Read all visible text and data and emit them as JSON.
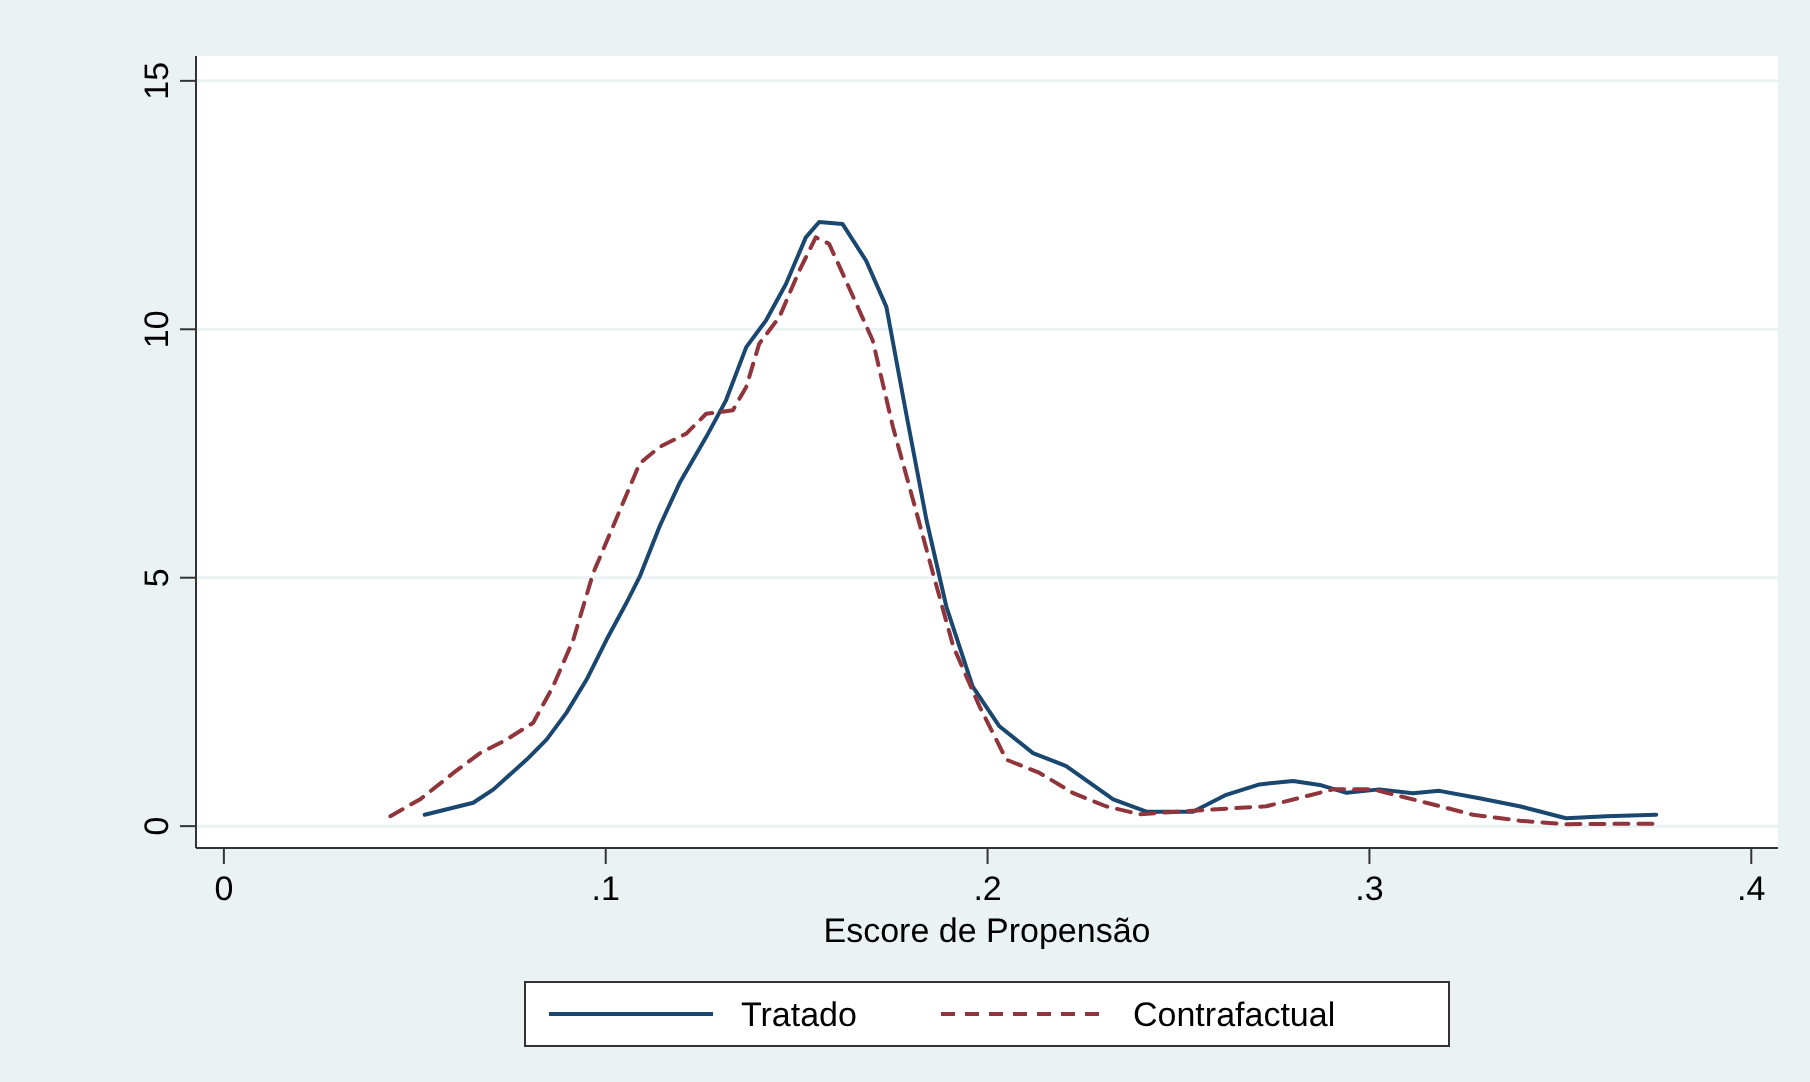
{
  "chart_data": {
    "type": "line",
    "xlabel": "Escore de Propensão",
    "xlim": [
      -0.0073,
      0.407
    ],
    "ylim": [
      -0.44,
      15.5
    ],
    "xticks": [
      0,
      {
        "value": 0.1,
        "label": ".1"
      },
      {
        "value": 0.2,
        "label": ".2"
      },
      {
        "value": 0.3,
        "label": ".3"
      },
      {
        "value": 0.4,
        "label": ".4"
      }
    ],
    "yticks": [
      0,
      5,
      10,
      15
    ],
    "grid": "y",
    "legend": "bottom",
    "series": [
      {
        "name": "Tratado",
        "color": "#1a476f",
        "line_style": "solid",
        "x": [
          0.0526,
          0.0653,
          0.0706,
          0.0793,
          0.0845,
          0.0897,
          0.095,
          0.1002,
          0.1054,
          0.1089,
          0.1141,
          0.1193,
          0.1263,
          0.1315,
          0.1368,
          0.142,
          0.1472,
          0.1524,
          0.1559,
          0.162,
          0.1682,
          0.1735,
          0.1787,
          0.184,
          0.1892,
          0.1961,
          0.2031,
          0.2119,
          0.2206,
          0.2329,
          0.2416,
          0.2538,
          0.2625,
          0.2712,
          0.28,
          0.287,
          0.294,
          0.3026,
          0.3114,
          0.3183,
          0.3288,
          0.3393,
          0.3515,
          0.362,
          0.3751
        ],
        "values": [
          0.23,
          0.47,
          0.74,
          1.34,
          1.74,
          2.28,
          2.95,
          3.75,
          4.49,
          5.02,
          6.03,
          6.9,
          7.83,
          8.57,
          9.64,
          10.18,
          10.91,
          11.85,
          12.16,
          12.12,
          11.38,
          10.45,
          8.3,
          6.16,
          4.42,
          2.81,
          2.01,
          1.47,
          1.21,
          0.54,
          0.29,
          0.29,
          0.63,
          0.84,
          0.91,
          0.83,
          0.67,
          0.74,
          0.66,
          0.71,
          0.56,
          0.4,
          0.16,
          0.2,
          0.23
        ]
      },
      {
        "name": "Contrafactual",
        "color": "#90353b",
        "line_style": "dashed",
        "x": [
          0.0436,
          0.0514,
          0.0601,
          0.0671,
          0.074,
          0.081,
          0.0862,
          0.0915,
          0.0967,
          0.1019,
          0.1089,
          0.1141,
          0.1211,
          0.1263,
          0.1333,
          0.1368,
          0.1402,
          0.1455,
          0.1507,
          0.155,
          0.1585,
          0.1613,
          0.1699,
          0.1752,
          0.1805,
          0.1857,
          0.191,
          0.1979,
          0.2049,
          0.2136,
          0.2223,
          0.231,
          0.2398,
          0.2538,
          0.273,
          0.2905,
          0.301,
          0.3149,
          0.3271,
          0.3393,
          0.3515,
          0.3742
        ],
        "values": [
          0.2,
          0.54,
          1.07,
          1.47,
          1.74,
          2.08,
          2.81,
          3.75,
          5.09,
          6.03,
          7.3,
          7.63,
          7.9,
          8.3,
          8.37,
          8.84,
          9.71,
          10.25,
          11.18,
          11.85,
          11.72,
          11.25,
          9.78,
          8.04,
          6.56,
          5.09,
          3.62,
          2.41,
          1.34,
          1.07,
          0.67,
          0.4,
          0.24,
          0.31,
          0.4,
          0.74,
          0.74,
          0.47,
          0.23,
          0.11,
          0.04,
          0.05
        ]
      }
    ]
  }
}
